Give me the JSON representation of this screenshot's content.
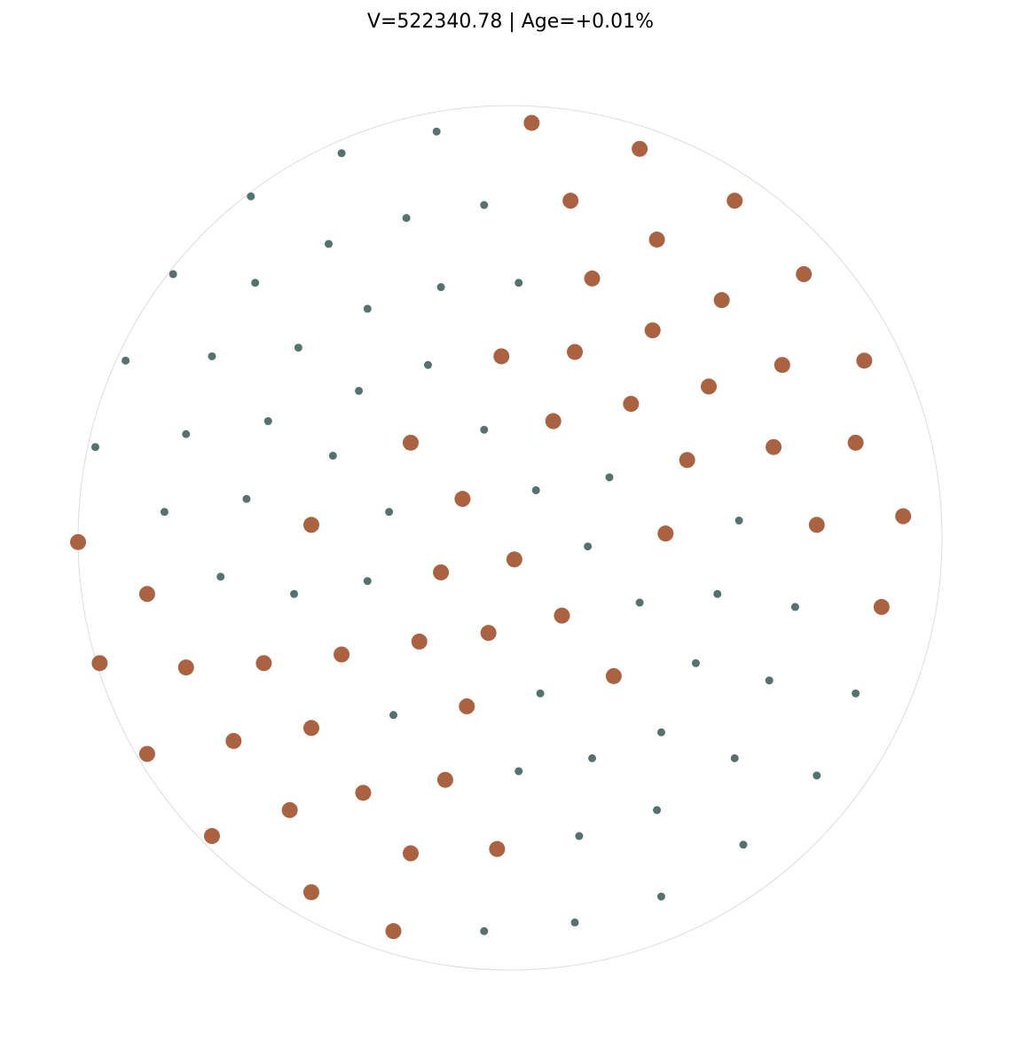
{
  "title": "V=522340.78 | Age=+0.01%",
  "chart_data": {
    "type": "scatter",
    "title": "V=522340.78 | Age=+0.01%",
    "xlabel": "",
    "ylabel": "",
    "xlim": [
      -1,
      1
    ],
    "ylim": [
      -1,
      1
    ],
    "boundary": "unit circle",
    "grid": false,
    "axes_visible": false,
    "series": [
      {
        "color": "#ab6241",
        "marker_size": "large",
        "points": [
          [
            0.05,
            0.96
          ],
          [
            0.3,
            0.9
          ],
          [
            0.14,
            0.78
          ],
          [
            0.52,
            0.78
          ],
          [
            0.34,
            0.69
          ],
          [
            0.68,
            0.61
          ],
          [
            0.19,
            0.6
          ],
          [
            0.49,
            0.55
          ],
          [
            0.33,
            0.48
          ],
          [
            -0.02,
            0.42
          ],
          [
            0.15,
            0.43
          ],
          [
            0.63,
            0.4
          ],
          [
            0.82,
            0.41
          ],
          [
            0.46,
            0.35
          ],
          [
            0.28,
            0.31
          ],
          [
            0.1,
            0.27
          ],
          [
            -0.23,
            0.22
          ],
          [
            0.41,
            0.18
          ],
          [
            0.61,
            0.21
          ],
          [
            0.8,
            0.22
          ],
          [
            -0.11,
            0.09
          ],
          [
            -0.46,
            0.03
          ],
          [
            0.36,
            0.01
          ],
          [
            0.71,
            0.03
          ],
          [
            0.91,
            0.05
          ],
          [
            -1.0,
            -0.01
          ],
          [
            0.01,
            -0.05
          ],
          [
            -0.16,
            -0.08
          ],
          [
            -0.84,
            -0.13
          ],
          [
            0.86,
            -0.16
          ],
          [
            0.12,
            -0.18
          ],
          [
            -0.05,
            -0.22
          ],
          [
            -0.21,
            -0.24
          ],
          [
            -0.95,
            -0.29
          ],
          [
            -0.75,
            -0.3
          ],
          [
            -0.57,
            -0.29
          ],
          [
            -0.39,
            -0.27
          ],
          [
            0.24,
            -0.32
          ],
          [
            -0.1,
            -0.39
          ],
          [
            -0.46,
            -0.44
          ],
          [
            -0.84,
            -0.5
          ],
          [
            -0.64,
            -0.47
          ],
          [
            -0.34,
            -0.59
          ],
          [
            -0.15,
            -0.56
          ],
          [
            -0.51,
            -0.63
          ],
          [
            -0.69,
            -0.69
          ],
          [
            -0.23,
            -0.73
          ],
          [
            -0.03,
            -0.72
          ],
          [
            -0.46,
            -0.82
          ],
          [
            -0.27,
            -0.91
          ]
        ]
      },
      {
        "color": "#557270",
        "marker_size": "small",
        "points": [
          [
            -0.17,
            0.94
          ],
          [
            -0.39,
            0.89
          ],
          [
            -0.6,
            0.79
          ],
          [
            -0.06,
            0.77
          ],
          [
            -0.24,
            0.74
          ],
          [
            -0.42,
            0.68
          ],
          [
            -0.78,
            0.61
          ],
          [
            -0.59,
            0.59
          ],
          [
            -0.16,
            0.58
          ],
          [
            0.02,
            0.59
          ],
          [
            -0.33,
            0.53
          ],
          [
            -0.89,
            0.41
          ],
          [
            -0.69,
            0.42
          ],
          [
            -0.49,
            0.44
          ],
          [
            -0.19,
            0.4
          ],
          [
            -0.35,
            0.34
          ],
          [
            -0.96,
            0.21
          ],
          [
            -0.75,
            0.24
          ],
          [
            -0.56,
            0.27
          ],
          [
            -0.06,
            0.25
          ],
          [
            -0.41,
            0.19
          ],
          [
            0.23,
            0.14
          ],
          [
            0.06,
            0.11
          ],
          [
            -0.8,
            0.06
          ],
          [
            -0.61,
            0.09
          ],
          [
            -0.28,
            0.06
          ],
          [
            0.53,
            0.04
          ],
          [
            0.18,
            -0.02
          ],
          [
            -0.67,
            -0.09
          ],
          [
            -0.5,
            -0.13
          ],
          [
            -0.33,
            -0.1
          ],
          [
            0.3,
            -0.15
          ],
          [
            0.48,
            -0.13
          ],
          [
            0.66,
            -0.16
          ],
          [
            0.43,
            -0.29
          ],
          [
            0.6,
            -0.33
          ],
          [
            0.8,
            -0.36
          ],
          [
            0.07,
            -0.36
          ],
          [
            -0.27,
            -0.41
          ],
          [
            0.35,
            -0.45
          ],
          [
            0.19,
            -0.51
          ],
          [
            0.52,
            -0.51
          ],
          [
            0.02,
            -0.54
          ],
          [
            0.71,
            -0.55
          ],
          [
            0.34,
            -0.63
          ],
          [
            0.16,
            -0.69
          ],
          [
            0.54,
            -0.71
          ],
          [
            0.35,
            -0.83
          ],
          [
            0.15,
            -0.89
          ],
          [
            -0.06,
            -0.91
          ]
        ]
      }
    ]
  }
}
